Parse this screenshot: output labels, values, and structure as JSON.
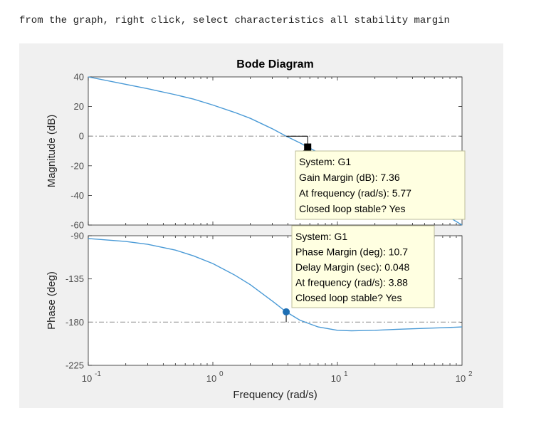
{
  "instruction": "from the graph, right click, select characteristics all stability margin",
  "colors": {
    "line": "#4a9ad6",
    "marker_phase": "#1f6fb4",
    "marker_gain": "#000000",
    "reference_line": "#9a9a9a",
    "datatip_bg": "#ffffe1",
    "datatip_border": "#bdbd9a",
    "panel_bg": "#f0f0f0"
  },
  "chart_data": {
    "type": "line",
    "title": "Bode Diagram",
    "xlabel": "Frequency  (rad/s)",
    "xscale": "log",
    "xlim": [
      0.1,
      100
    ],
    "x_ticks": [
      {
        "value": 0.1,
        "base": "10",
        "exp": "-1"
      },
      {
        "value": 1,
        "base": "10",
        "exp": "0"
      },
      {
        "value": 10,
        "base": "10",
        "exp": "1"
      },
      {
        "value": 100,
        "base": "10",
        "exp": "2"
      }
    ],
    "panels": [
      {
        "id": "magnitude",
        "ylabel": "Magnitude (dB)",
        "ylim": [
          -60,
          40
        ],
        "y_ticks": [
          40,
          20,
          0,
          -20,
          -40,
          -60
        ],
        "y_tick_labels": [
          "40",
          "20",
          "0",
          "-20",
          "-40",
          "-60"
        ],
        "reference_y": 0,
        "series": [
          {
            "x": [
              0.1,
              0.2,
              0.3,
              0.5,
              0.7,
              1,
              1.5,
              2,
              3,
              3.88,
              5,
              5.77,
              7,
              10,
              15,
              20,
              30,
              50,
              70,
              100
            ],
            "y": [
              40,
              35,
              32,
              28,
              25,
              21,
              16,
              12,
              5,
              0,
              -4.5,
              -7.36,
              -11,
              -17,
              -24,
              -29,
              -36,
              -45,
              -52,
              -61
            ]
          }
        ],
        "marker": {
          "shape": "square",
          "x": 5.77,
          "y": -7.36
        },
        "datatip": {
          "lines": [
            "System: G1",
            "Gain Margin (dB): 7.36",
            "At frequency (rad/s): 5.77",
            "Closed loop stable? Yes"
          ]
        }
      },
      {
        "id": "phase",
        "ylabel": "Phase (deg)",
        "ylim": [
          -225,
          -90
        ],
        "y_ticks": [
          -90,
          -135,
          -180,
          -225
        ],
        "y_tick_labels": [
          "-90",
          "-135",
          "-180",
          "-225"
        ],
        "reference_y": -180,
        "series": [
          {
            "x": [
              0.1,
              0.2,
              0.3,
              0.5,
              0.7,
              1,
              1.5,
              2,
              3,
              3.88,
              5,
              7,
              10,
              13,
              20,
              30,
              50,
              70,
              100
            ],
            "y": [
              -93,
              -96,
              -99,
              -105,
              -111,
              -119,
              -131,
              -141,
              -158,
              -169.3,
              -178,
              -185,
              -188.5,
              -189,
              -188.5,
              -187.5,
              -186.5,
              -185.8,
              -185
            ]
          }
        ],
        "marker": {
          "shape": "circle",
          "x": 3.88,
          "y": -169.3
        },
        "datatip": {
          "lines": [
            "System: G1",
            "Phase Margin (deg): 10.7",
            "Delay Margin (sec): 0.048",
            "At frequency (rad/s): 3.88",
            "Closed loop stable? Yes"
          ]
        }
      }
    ]
  }
}
